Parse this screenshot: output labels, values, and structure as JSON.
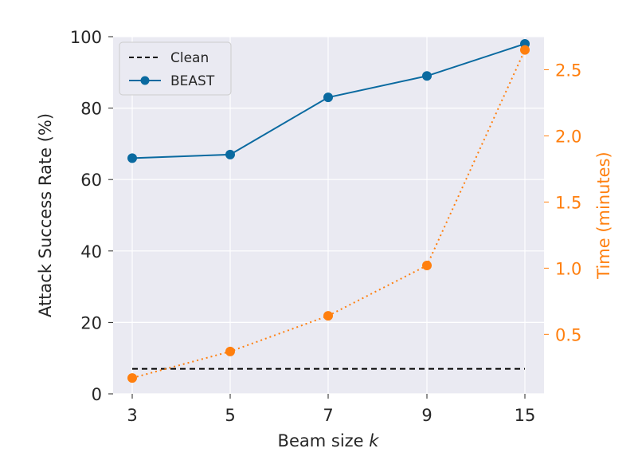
{
  "chart_data": {
    "type": "line",
    "title": "",
    "x": {
      "label": "Beam size",
      "label_var": "k",
      "categories": [
        "3",
        "5",
        "7",
        "9",
        "15"
      ]
    },
    "y_left": {
      "label": "Attack Success Rate (%)",
      "lim": [
        0,
        100
      ],
      "ticks": [
        "0",
        "20",
        "40",
        "60",
        "80",
        "100"
      ]
    },
    "y_right": {
      "label": "Time (minutes)",
      "lim": [
        0.05,
        2.75
      ],
      "ticks": [
        "0.5",
        "1.0",
        "1.5",
        "2.0",
        "2.5"
      ],
      "color": "#ff7f0e"
    },
    "series": [
      {
        "name": "Clean",
        "axis": "left",
        "style": "dashed",
        "markers": false,
        "color": "#000000",
        "values": [
          7,
          7,
          7,
          7,
          7
        ]
      },
      {
        "name": "BEAST",
        "axis": "left",
        "style": "solid",
        "markers": true,
        "color": "#0a6aa0",
        "values": [
          66,
          67,
          83,
          89,
          98
        ]
      },
      {
        "name": "",
        "axis": "right",
        "style": "dotted",
        "markers": true,
        "color": "#ff7f0e",
        "values": [
          0.17,
          0.37,
          0.64,
          1.02,
          2.65
        ]
      }
    ],
    "legend": {
      "position": "top-left",
      "entries": [
        "Clean",
        "BEAST"
      ]
    },
    "grid": true,
    "background": "#eaeaf2"
  }
}
